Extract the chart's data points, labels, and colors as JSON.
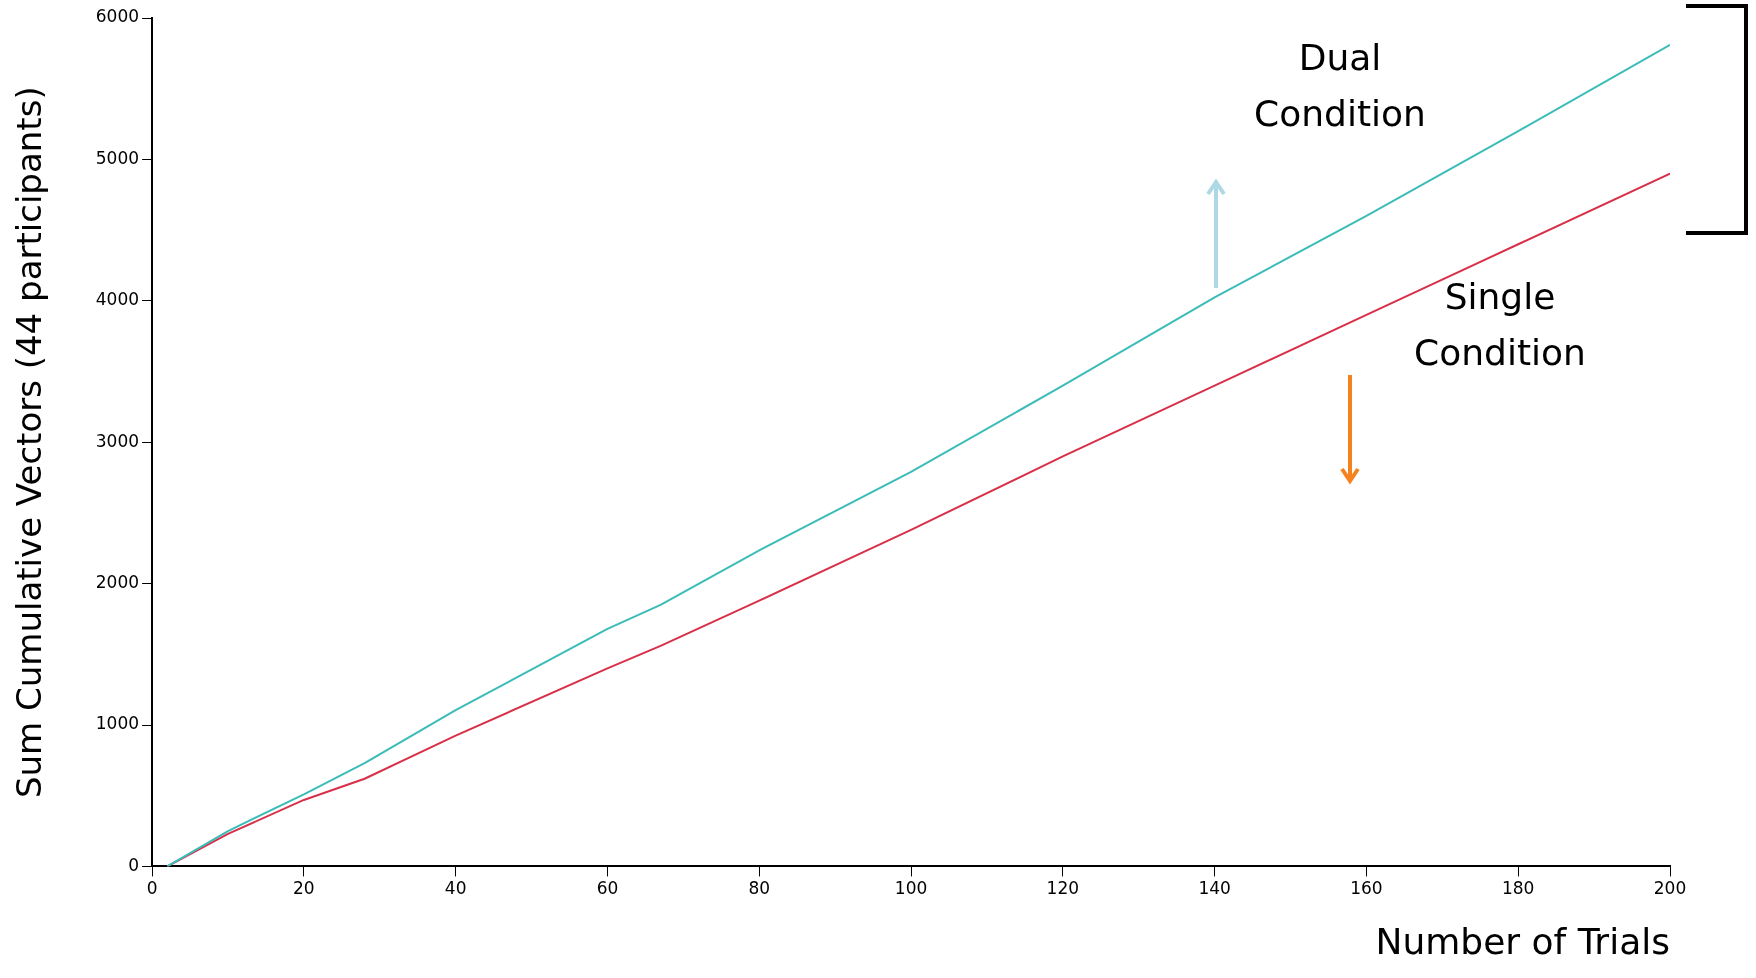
{
  "chart_data": {
    "type": "line",
    "xlabel": "Number of Trials",
    "ylabel": "Sum Cumulative Vectors (44 participants)",
    "xlim": [
      0,
      200
    ],
    "xticks": [
      0,
      20,
      40,
      60,
      80,
      100,
      120,
      140,
      160,
      180,
      200
    ],
    "ylim": [
      0,
      6000
    ],
    "yticks": [
      0,
      1000,
      2000,
      3000,
      4000,
      5000,
      6000
    ],
    "grid": false,
    "legend": false,
    "marker": "none",
    "line_style": "solid",
    "series": [
      {
        "name": "Dual Condition",
        "color": "#3cbcb8",
        "x": [
          2,
          10,
          20,
          28,
          40,
          60,
          67,
          80,
          100,
          120,
          140,
          160,
          180,
          200
        ],
        "values": [
          0,
          250,
          510,
          730,
          1105,
          1680,
          1850,
          2235,
          2790,
          3400,
          4025,
          4600,
          5200,
          5810
        ]
      },
      {
        "name": "Single Condition",
        "color": "#d9304a",
        "x": [
          2,
          10,
          20,
          28,
          40,
          60,
          67,
          80,
          100,
          120,
          140,
          160,
          180,
          200
        ],
        "values": [
          0,
          230,
          470,
          620,
          925,
          1400,
          1560,
          1880,
          2380,
          2900,
          3400,
          3900,
          4400,
          4900
        ]
      }
    ]
  }
}
